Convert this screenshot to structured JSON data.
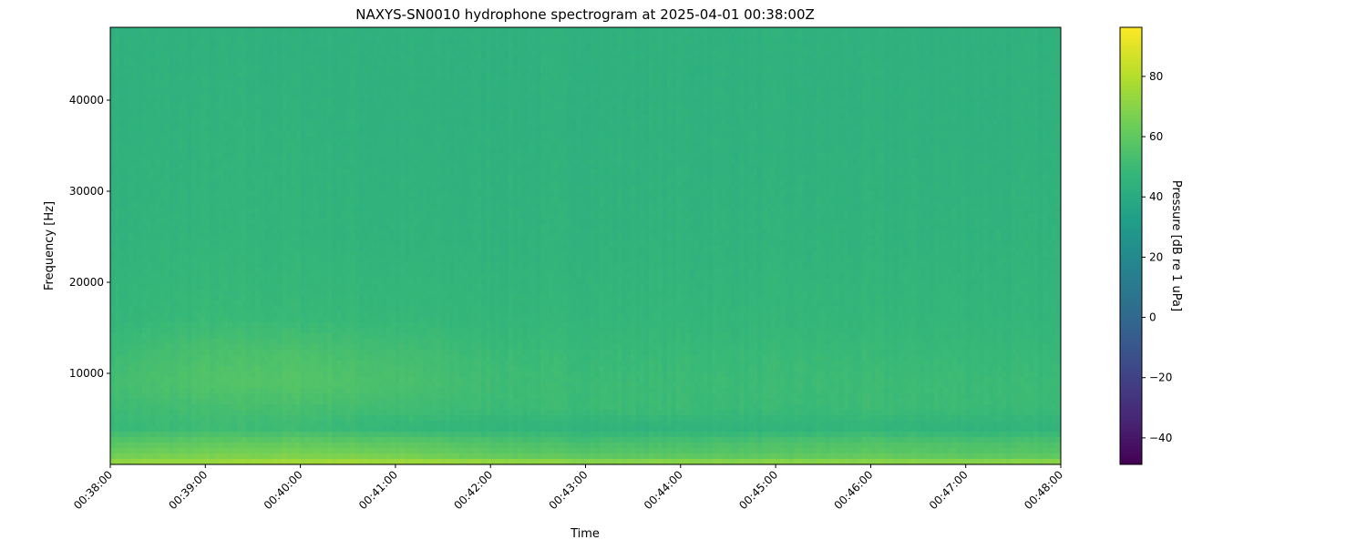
{
  "chart_data": {
    "type": "heatmap",
    "title": "NAXYS-SN0010 hydrophone spectrogram at 2025-04-01 00:38:00Z",
    "xlabel": "Time",
    "ylabel": "Frequency [Hz]",
    "xlim": [
      "00:38:00",
      "00:48:00"
    ],
    "ylim": [
      0,
      48000
    ],
    "x_tick_labels": [
      "00:38:00",
      "00:39:00",
      "00:40:00",
      "00:41:00",
      "00:42:00",
      "00:43:00",
      "00:44:00",
      "00:45:00",
      "00:46:00",
      "00:47:00",
      "00:48:00"
    ],
    "y_ticks": [
      10000,
      20000,
      30000,
      40000
    ],
    "y_tick_labels": [
      "10000",
      "20000",
      "30000",
      "40000"
    ],
    "colormap": "viridis",
    "colorbar": {
      "label": "Pressure [dB re 1 uPa]",
      "range": [
        -48.8,
        96.3
      ],
      "ticks": [
        -40,
        -20,
        0,
        20,
        40,
        60,
        80
      ],
      "tick_labels": [
        "−40",
        "−20",
        "0",
        "20",
        "40",
        "60",
        "80"
      ]
    },
    "grid": false,
    "times": [
      "00:38:00",
      "00:39:00",
      "00:40:00",
      "00:41:00",
      "00:42:00",
      "00:43:00",
      "00:44:00",
      "00:45:00",
      "00:46:00",
      "00:47:00",
      "00:48:00"
    ],
    "frequencies_hz": [
      250,
      1000,
      2500,
      4000,
      6000,
      9000,
      12000,
      16000,
      25000,
      37500,
      46000
    ],
    "values_db": [
      [
        72,
        74,
        76,
        75,
        73,
        70,
        70,
        70,
        70,
        70,
        70
      ],
      [
        64,
        66,
        67,
        65,
        60,
        58,
        58,
        58,
        60,
        58,
        58
      ],
      [
        57,
        59,
        60,
        58,
        55,
        53,
        53,
        54,
        55,
        54,
        54
      ],
      [
        48,
        50,
        50,
        47,
        46,
        45,
        45,
        45,
        46,
        45,
        45
      ],
      [
        50,
        52,
        53,
        51,
        50,
        50,
        50,
        49,
        50,
        50,
        49
      ],
      [
        52,
        56,
        57,
        54,
        51,
        50,
        50,
        50,
        50,
        50,
        49
      ],
      [
        50,
        54,
        55,
        52,
        50,
        49,
        49,
        49,
        49,
        49,
        48
      ],
      [
        47,
        49,
        49,
        48,
        47,
        47,
        47,
        47,
        47,
        47,
        46
      ],
      [
        45,
        46,
        46,
        45,
        45,
        45,
        45,
        45,
        45,
        45,
        45
      ],
      [
        44,
        45,
        45,
        44,
        44,
        44,
        44,
        44,
        44,
        44,
        44
      ],
      [
        44,
        44,
        44,
        44,
        44,
        44,
        44,
        44,
        44,
        44,
        44
      ]
    ]
  }
}
